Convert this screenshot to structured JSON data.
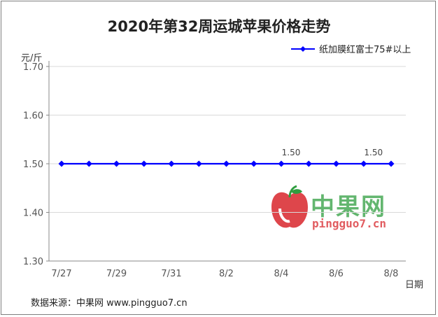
{
  "chart_data": {
    "type": "line",
    "title": "2020年第32周运城苹果价格走势",
    "ylabel": "元/斤",
    "xlabel": "日期",
    "ylim": [
      1.3,
      1.7
    ],
    "yticks": [
      "1.30",
      "1.40",
      "1.50",
      "1.60",
      "1.70"
    ],
    "yticks_values": [
      1.3,
      1.4,
      1.5,
      1.6,
      1.7
    ],
    "x": [
      "7/27",
      "7/28",
      "7/29",
      "7/30",
      "7/31",
      "8/1",
      "8/2",
      "8/3",
      "8/4",
      "8/5",
      "8/6",
      "8/7",
      "8/8"
    ],
    "xtick_labels": [
      "7/27",
      "7/29",
      "7/31",
      "8/2",
      "8/4",
      "8/6",
      "8/8"
    ],
    "xtick_indices": [
      0,
      2,
      4,
      6,
      8,
      10,
      12
    ],
    "series": [
      {
        "name": "纸加膜红富士75#以上",
        "values": [
          1.5,
          1.5,
          1.5,
          1.5,
          1.5,
          1.5,
          1.5,
          1.5,
          1.5,
          1.5,
          1.5,
          1.5,
          1.5
        ],
        "color": "#0000ff",
        "data_labels": [
          {
            "index": 8,
            "text": "1.50"
          },
          {
            "index": 11,
            "text": "1.50"
          }
        ]
      }
    ],
    "grid": true,
    "legend_position": "top-right"
  },
  "watermark": {
    "name_cn": "中果网",
    "site": "pingguo7.cn",
    "icon": "apple-logo-icon"
  },
  "footer": "数据来源：中果网 www.pingguo7.cn"
}
